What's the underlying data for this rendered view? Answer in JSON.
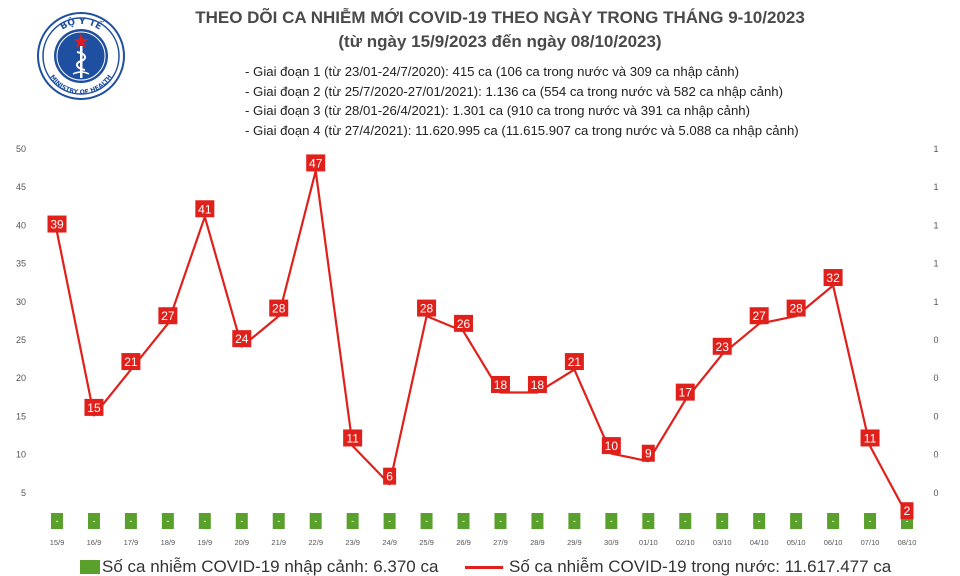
{
  "logo": {
    "top_text": "BỘ Y TẾ",
    "bottom_text": "MINISTRY OF HEALTH"
  },
  "header": {
    "title_line1": "THEO DÕI CA NHIỄM MỚI COVID-19 THEO NGÀY TRONG THÁNG 9-10/2023",
    "title_line2": "(từ ngày 15/9/2023 đến ngày 08/10/2023)"
  },
  "phases": [
    "- Giai đoạn 1 (từ 23/01-24/7/2020): 415 ca (106 ca trong nước và 309 ca nhập cảnh)",
    "- Giai đoạn 2 (từ 25/7/2020-27/01/2021): 1.136 ca (554 ca trong nước và 582 ca nhập cảnh)",
    "- Giai đoạn 3 (từ 28/01-26/4/2021): 1.301 ca (910 ca trong nước và 391 ca nhập cảnh)",
    "- Giai đoạn 4 (từ 27/4/2021): 11.620.995 ca (11.615.907 ca trong nước và 5.088 ca nhập cảnh)"
  ],
  "legend": {
    "bar_label": "Số ca nhiễm COVID-19 nhập cảnh: 6.370 ca",
    "line_label": "Số ca nhiễm COVID-19 trong nước: 11.617.477 ca"
  },
  "chart_data": {
    "type": "bar+line",
    "categories": [
      "15/9",
      "16/9",
      "17/9",
      "18/9",
      "19/9",
      "20/9",
      "21/9",
      "22/9",
      "23/9",
      "24/9",
      "25/9",
      "26/9",
      "27/9",
      "28/9",
      "29/9",
      "30/9",
      "01/10",
      "02/10",
      "03/10",
      "04/10",
      "05/10",
      "06/10",
      "07/10",
      "08/10"
    ],
    "series": [
      {
        "name": "Số ca nhiễm COVID-19 nhập cảnh",
        "kind": "bar",
        "axis": "right",
        "color": "#5aa02c",
        "values": [
          0,
          0,
          0,
          0,
          0,
          0,
          0,
          0,
          0,
          0,
          0,
          0,
          0,
          0,
          0,
          0,
          0,
          0,
          0,
          0,
          0,
          0,
          0,
          0
        ],
        "data_labels": [
          "-",
          "-",
          "-",
          "-",
          "-",
          "-",
          "-",
          "-",
          "-",
          "-",
          "-",
          "-",
          "-",
          "-",
          "-",
          "-",
          "-",
          "-",
          "-",
          "-",
          "-",
          "-",
          "-",
          "-"
        ]
      },
      {
        "name": "Số ca nhiễm COVID-19 trong nước",
        "kind": "line",
        "axis": "left",
        "color": "#e0201b",
        "values": [
          39,
          15,
          21,
          27,
          41,
          24,
          28,
          47,
          11,
          6,
          28,
          26,
          18,
          18,
          21,
          10,
          9,
          17,
          23,
          27,
          28,
          32,
          11,
          2
        ]
      }
    ],
    "ylim_left": [
      0,
      50
    ],
    "yticks_left": [
      5,
      10,
      15,
      20,
      25,
      30,
      35,
      40,
      45,
      50
    ],
    "yticks_right": [
      "0",
      "0",
      "0",
      "0",
      "0",
      "1",
      "1",
      "1",
      "1",
      "1"
    ],
    "grid": false
  }
}
